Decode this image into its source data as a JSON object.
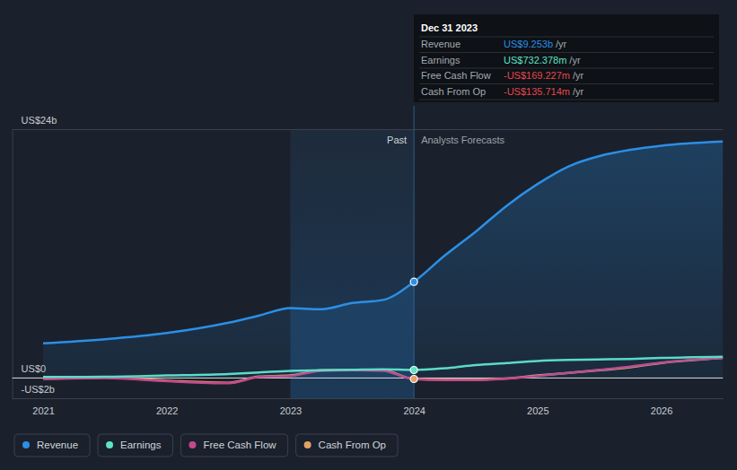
{
  "chart_data": {
    "type": "line",
    "x": [
      2021,
      2021.5,
      2022,
      2022.5,
      2022.75,
      2023,
      2023.25,
      2023.5,
      2023.75,
      2024,
      2024.25,
      2024.5,
      2024.75,
      2025,
      2025.25,
      2025.5,
      2025.75,
      2026,
      2026.5
    ],
    "xlim": [
      2020.75,
      2026.5
    ],
    "xticks": [
      2021,
      2022,
      2023,
      2024,
      2025,
      2026
    ],
    "ylim": [
      -2,
      24
    ],
    "yticks": [
      {
        "value": -2,
        "label": "-US$2b"
      },
      {
        "value": 0,
        "label": "US$0"
      },
      {
        "value": 24,
        "label": "US$24b"
      }
    ],
    "grid": true,
    "legend": "bottom",
    "highlight": {
      "from": 2023,
      "to": 2024
    },
    "annotations": [
      "Past",
      "Analysts Forecasts"
    ],
    "tooltip": {
      "title": "Dec 31 2023",
      "rows": [
        {
          "label": "Revenue",
          "value": "US$9.253b",
          "unit": "/yr",
          "color": "#2b8fe6"
        },
        {
          "label": "Earnings",
          "value": "US$732.378m",
          "unit": "/yr",
          "color": "#5fe3c5"
        },
        {
          "label": "Free Cash Flow",
          "value": "-US$169.227m",
          "unit": "/yr",
          "color": "#e5484d"
        },
        {
          "label": "Cash From Op",
          "value": "-US$135.714m",
          "unit": "/yr",
          "color": "#e5484d"
        }
      ]
    },
    "series": [
      {
        "name": "Revenue",
        "color": "#2b8fe6",
        "type": "area",
        "marker": "circle",
        "values": [
          3.3,
          3.7,
          4.3,
          5.3,
          6.0,
          6.7,
          6.6,
          7.2,
          7.5,
          9.253,
          11.8,
          14.1,
          16.6,
          18.7,
          20.4,
          21.4,
          22.0,
          22.4,
          22.8
        ]
      },
      {
        "name": "Earnings",
        "color": "#5fe3c5",
        "type": "line",
        "marker": "circle",
        "values": [
          0.05,
          0.08,
          0.2,
          0.35,
          0.5,
          0.65,
          0.7,
          0.75,
          0.8,
          0.732,
          0.9,
          1.2,
          1.4,
          1.6,
          1.7,
          1.75,
          1.8,
          1.9,
          2.0
        ]
      },
      {
        "name": "Free Cash Flow",
        "color": "#c4488c",
        "type": "line",
        "marker": "none",
        "values": [
          -0.15,
          -0.05,
          -0.35,
          -0.55,
          0.05,
          0.15,
          0.65,
          0.7,
          0.65,
          -0.169,
          -0.25,
          -0.25,
          -0.1,
          0.15,
          0.45,
          0.75,
          1.05,
          1.45,
          1.9
        ]
      },
      {
        "name": "Cash From Op",
        "color": "#e3a166",
        "type": "line",
        "marker": "circle",
        "values": [
          -0.1,
          0.0,
          -0.3,
          -0.5,
          0.1,
          0.2,
          0.7,
          0.75,
          0.7,
          -0.136,
          -0.2,
          -0.2,
          -0.1,
          0.2,
          0.45,
          0.7,
          1.0,
          1.4,
          1.9
        ]
      }
    ]
  }
}
